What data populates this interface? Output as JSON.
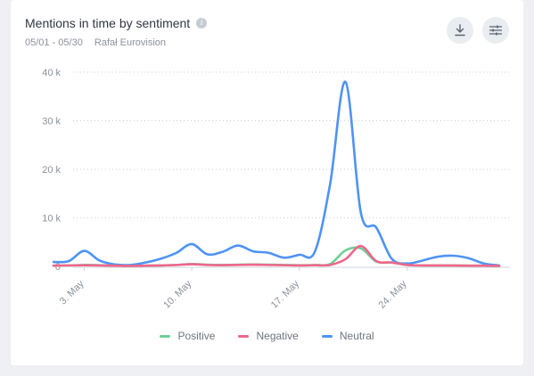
{
  "header": {
    "title": "Mentions in time by sentiment",
    "date_range": "05/01 - 05/30",
    "project": "Rafał Eurovision",
    "info_icon": "info-icon",
    "download_icon": "download-icon",
    "settings_icon": "sliders-icon"
  },
  "chart_data": {
    "type": "line",
    "title": "Mentions in time by sentiment",
    "x": [
      1,
      2,
      3,
      4,
      5,
      6,
      7,
      8,
      9,
      10,
      11,
      12,
      13,
      14,
      15,
      16,
      17,
      18,
      19,
      20,
      21,
      22,
      23,
      24,
      25,
      26,
      27,
      28,
      29,
      30
    ],
    "x_tick_labels": [
      {
        "day": 3,
        "label": "3. May"
      },
      {
        "day": 10,
        "label": "10. May"
      },
      {
        "day": 17,
        "label": "17. May"
      },
      {
        "day": 24,
        "label": "24. May"
      }
    ],
    "yticks": [
      0,
      10000,
      20000,
      30000,
      40000
    ],
    "ytick_labels": [
      "0",
      "10 k",
      "20 k",
      "30 k",
      "40 k"
    ],
    "ylim": [
      0,
      40000
    ],
    "xlim": [
      1,
      30
    ],
    "grid": true,
    "legend_position": "bottom",
    "series": [
      {
        "name": "Positive",
        "color": "#6fcf97",
        "values": [
          150,
          200,
          300,
          250,
          150,
          100,
          150,
          200,
          300,
          500,
          350,
          300,
          350,
          400,
          350,
          300,
          250,
          300,
          500,
          3300,
          3700,
          1000,
          800,
          300,
          200,
          200,
          200,
          150,
          150,
          100
        ]
      },
      {
        "name": "Negative",
        "color": "#f0668a",
        "values": [
          150,
          200,
          250,
          200,
          150,
          100,
          150,
          200,
          300,
          450,
          300,
          250,
          300,
          350,
          300,
          250,
          200,
          250,
          300,
          1500,
          4200,
          1100,
          800,
          300,
          200,
          200,
          200,
          150,
          150,
          100
        ]
      },
      {
        "name": "Neutral",
        "color": "#4e93f5",
        "values": [
          900,
          1100,
          3200,
          1200,
          400,
          300,
          800,
          1600,
          2800,
          4600,
          2500,
          3000,
          4300,
          3100,
          2800,
          1800,
          2400,
          3000,
          17000,
          38000,
          11000,
          8000,
          1600,
          600,
          1200,
          2000,
          2200,
          1700,
          600,
          200
        ]
      }
    ]
  }
}
